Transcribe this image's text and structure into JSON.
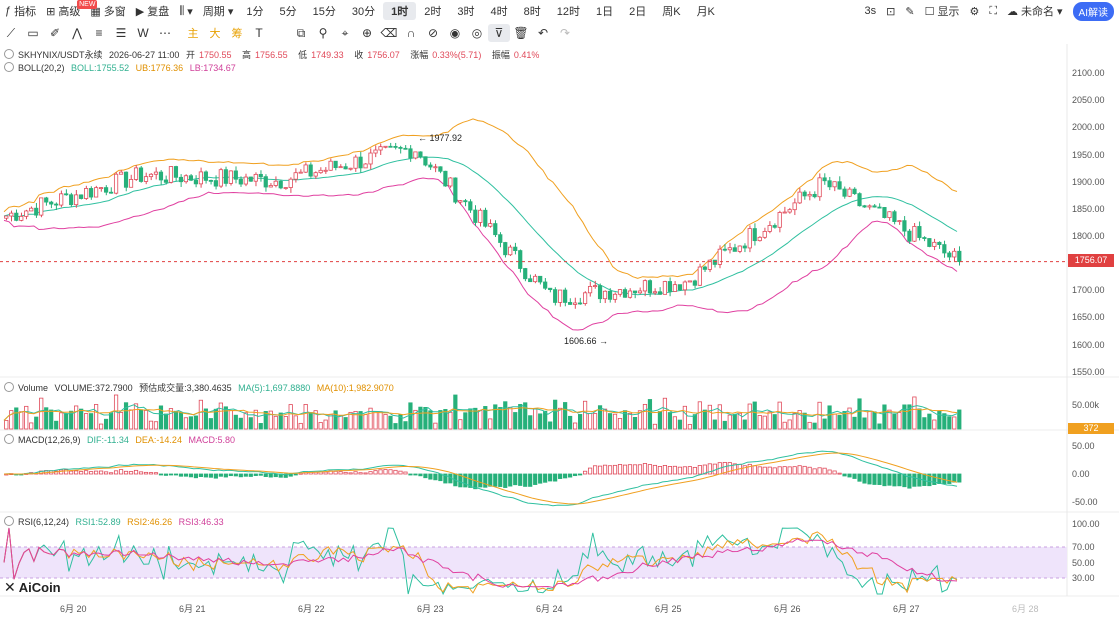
{
  "toolbar": {
    "indicators": "指标",
    "advanced": "高级",
    "new_badge": "NEW",
    "multi_window": "多窗",
    "replay": "复盘",
    "period": "周期",
    "intervals": [
      "1分",
      "5分",
      "15分",
      "30分",
      "1时",
      "2时",
      "3时",
      "4时",
      "8时",
      "12时",
      "1日",
      "2日",
      "周K",
      "月K"
    ],
    "active_interval": "1时",
    "refresh": "3s",
    "display": "显示",
    "layout_name": "未命名",
    "ai_label": "AI解读"
  },
  "tools": {
    "text_tools": [
      "主",
      "大",
      "筹"
    ],
    "w_label": "W"
  },
  "main_info": {
    "symbol": "SKHYNIX/USDT永续",
    "time": "2026-06-27 11:00",
    "open_label": "开",
    "open": "1750.55",
    "high_label": "高",
    "high": "1756.55",
    "low_label": "低",
    "low": "1749.33",
    "close_label": "收",
    "close": "1756.07",
    "change_label": "涨幅",
    "change": "0.33%(5.71)",
    "amp_label": "振幅",
    "amp": "0.41%"
  },
  "boll": {
    "name": "BOLL(20,2)",
    "mid": "BOLL:1755.52",
    "ub": "UB:1776.36",
    "lb": "LB:1734.67"
  },
  "volume": {
    "name": "Volume",
    "value": "VOLUME:372.7900",
    "est": "预估成交量:3,380.4635",
    "ma5": "MA(5):1,697.8880",
    "ma10": "MA(10):1,982.9070"
  },
  "macd": {
    "name": "MACD(12,26,9)",
    "dif": "DIF:-11.34",
    "dea": "DEA:-14.24",
    "macd": "MACD:5.80"
  },
  "rsi": {
    "name": "RSI(6,12,24)",
    "rsi1": "RSI1:52.89",
    "rsi2": "RSI2:46.26",
    "rsi3": "RSI3:46.33"
  },
  "price_axis": [
    "2100.00",
    "2050.00",
    "2000.00",
    "1950.00",
    "1900.00",
    "1850.00",
    "1800.00",
    "1700.00",
    "1650.00",
    "1600.00",
    "1550.00"
  ],
  "current_price": "1756.07",
  "volume_axis": [
    "50.00k"
  ],
  "volume_tag": "372",
  "macd_axis": [
    "50.00",
    "0.00",
    "-50.00"
  ],
  "rsi_axis": [
    "100.00",
    "70.00",
    "50.00",
    "30.00"
  ],
  "rsi_extra_axis": "50.00",
  "dates": [
    "6月 20",
    "6月 21",
    "6月 22",
    "6月 23",
    "6月 24",
    "6月 25",
    "6月 26",
    "6月 27",
    "6月 28"
  ],
  "annotations": {
    "high": "1977.92",
    "low": "1606.66"
  },
  "logo": "AiCoin",
  "colors": {
    "up": "#e04a5a",
    "down": "#26b07a",
    "ub": "#f0a020",
    "mid": "#30c0a0",
    "lb": "#e040a0",
    "rsi_band": "#efe4fb"
  },
  "chart_data": {
    "type": "candlestick",
    "symbol": "SKHYNIX/USDT永续",
    "interval": "1时",
    "x": [
      "6月 20",
      "6月 21",
      "6月 22",
      "6月 23",
      "6月 24",
      "6月 25",
      "6月 26",
      "6月 27"
    ],
    "close_approx": [
      1840,
      1915,
      1905,
      1965,
      1690,
      1720,
      1900,
      1756
    ],
    "ylim": [
      1550,
      2110
    ],
    "last_close": 1756.07,
    "marked_high": 1977.92,
    "marked_low": 1606.66
  }
}
